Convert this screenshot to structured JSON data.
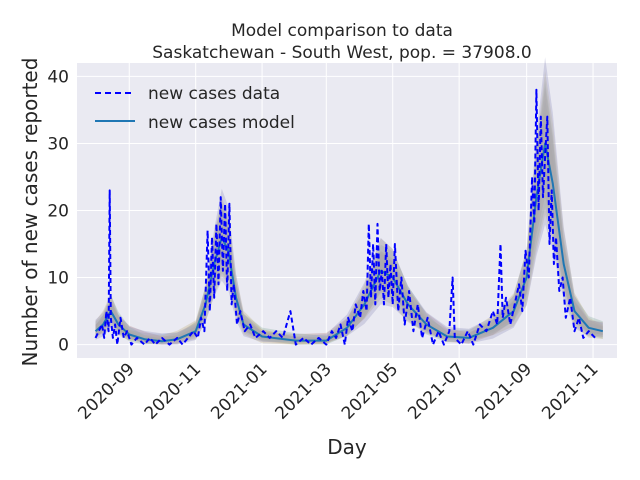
{
  "chart_data": {
    "type": "line",
    "title": "Model comparison to data",
    "subtitle": "Saskatchewan - South West, pop. = 37908.0",
    "xlabel": "Day",
    "ylabel": "Number of new cases reported",
    "x_range": [
      "2020-07-15",
      "2021-11-23"
    ],
    "ylim": [
      -2,
      42
    ],
    "y_ticks": [
      0,
      10,
      20,
      30,
      40
    ],
    "x_ticks": [
      "2020-09",
      "2020-11",
      "2021-01",
      "2021-03",
      "2021-05",
      "2021-07",
      "2021-09",
      "2021-11"
    ],
    "grid": true,
    "legend_position": "upper-left",
    "series": [
      {
        "name": "new cases data",
        "style": "dashed",
        "color": "#0000ff",
        "points": [
          [
            "2020-08-01",
            1
          ],
          [
            "2020-08-04",
            2
          ],
          [
            "2020-08-07",
            3
          ],
          [
            "2020-08-09",
            1
          ],
          [
            "2020-08-11",
            5
          ],
          [
            "2020-08-13",
            2
          ],
          [
            "2020-08-14",
            23
          ],
          [
            "2020-08-15",
            4
          ],
          [
            "2020-08-17",
            1
          ],
          [
            "2020-08-19",
            3
          ],
          [
            "2020-08-21",
            0
          ],
          [
            "2020-08-24",
            4
          ],
          [
            "2020-08-27",
            1
          ],
          [
            "2020-08-30",
            2
          ],
          [
            "2020-09-03",
            0
          ],
          [
            "2020-09-08",
            1
          ],
          [
            "2020-09-15",
            0
          ],
          [
            "2020-09-20",
            1
          ],
          [
            "2020-09-25",
            0
          ],
          [
            "2020-10-01",
            1
          ],
          [
            "2020-10-08",
            0
          ],
          [
            "2020-10-15",
            1
          ],
          [
            "2020-10-20",
            0
          ],
          [
            "2020-10-25",
            1
          ],
          [
            "2020-10-30",
            2
          ],
          [
            "2020-11-03",
            1
          ],
          [
            "2020-11-06",
            4
          ],
          [
            "2020-11-09",
            2
          ],
          [
            "2020-11-12",
            17
          ],
          [
            "2020-11-14",
            5
          ],
          [
            "2020-11-16",
            16
          ],
          [
            "2020-11-18",
            7
          ],
          [
            "2020-11-20",
            18
          ],
          [
            "2020-11-22",
            9
          ],
          [
            "2020-11-24",
            22
          ],
          [
            "2020-11-26",
            11
          ],
          [
            "2020-11-28",
            21
          ],
          [
            "2020-11-30",
            8
          ],
          [
            "2020-12-02",
            21
          ],
          [
            "2020-12-04",
            6
          ],
          [
            "2020-12-06",
            9
          ],
          [
            "2020-12-09",
            3
          ],
          [
            "2020-12-12",
            5
          ],
          [
            "2020-12-16",
            2
          ],
          [
            "2020-12-21",
            3
          ],
          [
            "2020-12-26",
            1
          ],
          [
            "2021-01-02",
            2
          ],
          [
            "2021-01-08",
            1
          ],
          [
            "2021-01-14",
            2
          ],
          [
            "2021-01-20",
            1
          ],
          [
            "2021-01-27",
            5
          ],
          [
            "2021-02-01",
            0
          ],
          [
            "2021-02-08",
            1
          ],
          [
            "2021-02-15",
            0
          ],
          [
            "2021-02-22",
            1
          ],
          [
            "2021-03-01",
            0
          ],
          [
            "2021-03-06",
            2
          ],
          [
            "2021-03-10",
            1
          ],
          [
            "2021-03-14",
            3
          ],
          [
            "2021-03-18",
            0
          ],
          [
            "2021-03-21",
            4
          ],
          [
            "2021-03-25",
            2
          ],
          [
            "2021-03-28",
            6
          ],
          [
            "2021-04-01",
            4
          ],
          [
            "2021-04-04",
            8
          ],
          [
            "2021-04-07",
            5
          ],
          [
            "2021-04-09",
            18
          ],
          [
            "2021-04-11",
            7
          ],
          [
            "2021-04-13",
            15
          ],
          [
            "2021-04-15",
            6
          ],
          [
            "2021-04-17",
            18
          ],
          [
            "2021-04-19",
            8
          ],
          [
            "2021-04-21",
            11
          ],
          [
            "2021-04-23",
            6
          ],
          [
            "2021-04-25",
            15
          ],
          [
            "2021-04-27",
            7
          ],
          [
            "2021-04-29",
            12
          ],
          [
            "2021-05-01",
            6
          ],
          [
            "2021-05-03",
            15
          ],
          [
            "2021-05-06",
            5
          ],
          [
            "2021-05-09",
            10
          ],
          [
            "2021-05-12",
            3
          ],
          [
            "2021-05-16",
            8
          ],
          [
            "2021-05-20",
            2
          ],
          [
            "2021-05-24",
            6
          ],
          [
            "2021-05-28",
            1
          ],
          [
            "2021-06-02",
            4
          ],
          [
            "2021-06-07",
            0
          ],
          [
            "2021-06-12",
            2
          ],
          [
            "2021-06-17",
            0
          ],
          [
            "2021-06-22",
            2
          ],
          [
            "2021-06-25",
            10
          ],
          [
            "2021-06-27",
            1
          ],
          [
            "2021-07-03",
            0
          ],
          [
            "2021-07-09",
            2
          ],
          [
            "2021-07-14",
            0
          ],
          [
            "2021-07-20",
            3
          ],
          [
            "2021-07-26",
            2
          ],
          [
            "2021-08-01",
            5
          ],
          [
            "2021-08-05",
            3
          ],
          [
            "2021-08-08",
            15
          ],
          [
            "2021-08-10",
            4
          ],
          [
            "2021-08-13",
            7
          ],
          [
            "2021-08-17",
            3
          ],
          [
            "2021-08-21",
            6
          ],
          [
            "2021-08-25",
            9
          ],
          [
            "2021-08-28",
            5
          ],
          [
            "2021-08-31",
            14
          ],
          [
            "2021-09-03",
            10
          ],
          [
            "2021-09-06",
            25
          ],
          [
            "2021-09-08",
            18
          ],
          [
            "2021-09-10",
            38
          ],
          [
            "2021-09-12",
            20
          ],
          [
            "2021-09-14",
            34
          ],
          [
            "2021-09-16",
            22
          ],
          [
            "2021-09-18",
            28
          ],
          [
            "2021-09-20",
            34
          ],
          [
            "2021-09-22",
            15
          ],
          [
            "2021-09-24",
            23
          ],
          [
            "2021-09-26",
            12
          ],
          [
            "2021-09-28",
            16
          ],
          [
            "2021-10-01",
            8
          ],
          [
            "2021-10-04",
            10
          ],
          [
            "2021-10-07",
            4
          ],
          [
            "2021-10-11",
            7
          ],
          [
            "2021-10-15",
            2
          ],
          [
            "2021-10-19",
            4
          ],
          [
            "2021-10-23",
            1
          ],
          [
            "2021-10-28",
            2
          ],
          [
            "2021-11-03",
            1
          ]
        ]
      },
      {
        "name": "new cases model",
        "style": "solid",
        "color": "#1f77b4",
        "points": [
          [
            "2020-08-01",
            2
          ],
          [
            "2020-08-08",
            3
          ],
          [
            "2020-08-15",
            5
          ],
          [
            "2020-08-22",
            3
          ],
          [
            "2020-09-01",
            1.5
          ],
          [
            "2020-09-15",
            0.8
          ],
          [
            "2020-10-01",
            0.5
          ],
          [
            "2020-10-15",
            0.8
          ],
          [
            "2020-11-01",
            2
          ],
          [
            "2020-11-10",
            6
          ],
          [
            "2020-11-18",
            12
          ],
          [
            "2020-11-25",
            16
          ],
          [
            "2020-12-01",
            14
          ],
          [
            "2020-12-08",
            7
          ],
          [
            "2020-12-15",
            3
          ],
          [
            "2021-01-01",
            1.2
          ],
          [
            "2021-02-01",
            0.6
          ],
          [
            "2021-03-01",
            0.6
          ],
          [
            "2021-03-20",
            2.5
          ],
          [
            "2021-04-05",
            6
          ],
          [
            "2021-04-20",
            11
          ],
          [
            "2021-05-01",
            10
          ],
          [
            "2021-05-15",
            6
          ],
          [
            "2021-06-01",
            3
          ],
          [
            "2021-06-20",
            1.2
          ],
          [
            "2021-07-10",
            1
          ],
          [
            "2021-08-01",
            2.5
          ],
          [
            "2021-08-20",
            5
          ],
          [
            "2021-09-01",
            10
          ],
          [
            "2021-09-10",
            22
          ],
          [
            "2021-09-18",
            30
          ],
          [
            "2021-09-25",
            24
          ],
          [
            "2021-10-05",
            12
          ],
          [
            "2021-10-15",
            5
          ],
          [
            "2021-10-28",
            2.5
          ],
          [
            "2021-11-10",
            2
          ]
        ]
      }
    ]
  }
}
